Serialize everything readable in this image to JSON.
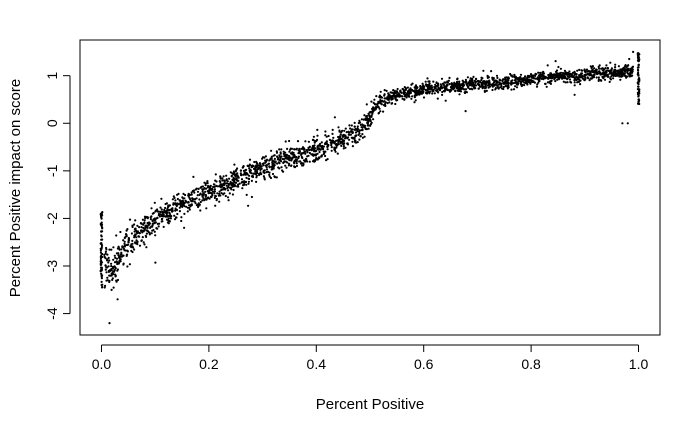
{
  "chart_data": {
    "type": "scatter",
    "title": "",
    "xlabel": "Percent Positive",
    "ylabel": "Percent Positive impact on score",
    "xlim": [
      -0.04,
      1.04
    ],
    "ylim": [
      -4.45,
      1.75
    ],
    "x_ticks": [
      0.0,
      0.2,
      0.4,
      0.6,
      0.8,
      1.0
    ],
    "x_tick_labels": [
      "0.0",
      "0.2",
      "0.4",
      "0.6",
      "0.8",
      "1.0"
    ],
    "y_ticks": [
      -4,
      -3,
      -2,
      -1,
      0,
      1
    ],
    "y_tick_labels": [
      "-4",
      "-3",
      "-2",
      "-1",
      "0",
      "1"
    ],
    "grid": false,
    "legend": "none",
    "point_color": "#000000",
    "trend_x": [
      0.0,
      0.02,
      0.04,
      0.06,
      0.08,
      0.1,
      0.12,
      0.14,
      0.16,
      0.18,
      0.2,
      0.22,
      0.24,
      0.26,
      0.28,
      0.3,
      0.32,
      0.34,
      0.36,
      0.38,
      0.4,
      0.42,
      0.44,
      0.46,
      0.48,
      0.5,
      0.51,
      0.52,
      0.54,
      0.56,
      0.58,
      0.6,
      0.62,
      0.64,
      0.66,
      0.68,
      0.7,
      0.72,
      0.74,
      0.76,
      0.78,
      0.8,
      0.82,
      0.84,
      0.86,
      0.88,
      0.9,
      0.92,
      0.94,
      0.96,
      0.98,
      1.0
    ],
    "trend_y": [
      -2.9,
      -3.1,
      -2.7,
      -2.45,
      -2.25,
      -2.05,
      -1.9,
      -1.75,
      -1.65,
      -1.55,
      -1.45,
      -1.35,
      -1.25,
      -1.15,
      -1.05,
      -0.95,
      -0.85,
      -0.78,
      -0.7,
      -0.63,
      -0.55,
      -0.48,
      -0.4,
      -0.3,
      -0.15,
      0.15,
      0.35,
      0.45,
      0.55,
      0.62,
      0.66,
      0.7,
      0.73,
      0.76,
      0.78,
      0.8,
      0.82,
      0.84,
      0.86,
      0.88,
      0.9,
      0.92,
      0.95,
      0.97,
      0.99,
      1.0,
      1.02,
      1.04,
      1.05,
      1.06,
      1.07,
      1.1
    ],
    "trend_spread": [
      0.5,
      0.35,
      0.3,
      0.28,
      0.25,
      0.24,
      0.22,
      0.22,
      0.22,
      0.22,
      0.22,
      0.22,
      0.23,
      0.23,
      0.23,
      0.23,
      0.22,
      0.22,
      0.22,
      0.22,
      0.22,
      0.22,
      0.22,
      0.22,
      0.22,
      0.2,
      0.15,
      0.14,
      0.13,
      0.12,
      0.12,
      0.12,
      0.12,
      0.12,
      0.12,
      0.12,
      0.12,
      0.12,
      0.12,
      0.12,
      0.12,
      0.12,
      0.12,
      0.12,
      0.12,
      0.12,
      0.12,
      0.12,
      0.12,
      0.12,
      0.12,
      0.18
    ],
    "outliers": [
      {
        "x": 0.015,
        "y": -4.2
      },
      {
        "x": 0.03,
        "y": -3.7
      },
      {
        "x": 0.97,
        "y": 0.0
      },
      {
        "x": 0.98,
        "y": 0.0
      },
      {
        "x": 0.99,
        "y": 1.5
      },
      {
        "x": 0.28,
        "y": -1.55
      }
    ],
    "vertical_bands": [
      {
        "x": 0.0,
        "y_min": -3.45,
        "y_max": -1.85
      },
      {
        "x": 1.0,
        "y_min": 0.4,
        "y_max": 1.5
      }
    ]
  }
}
